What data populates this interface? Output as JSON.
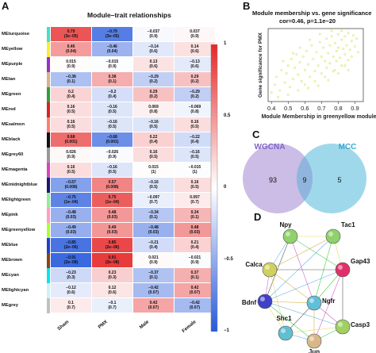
{
  "panels": {
    "a": {
      "letter": "A",
      "title": "Module–trait relationships"
    },
    "b": {
      "letter": "B",
      "title": "Module membership vs. gene significance",
      "subtitle": "cor=0.46, p=1.1e−20"
    },
    "c": {
      "letter": "C"
    },
    "d": {
      "letter": "D"
    }
  },
  "chart_data": [
    {
      "type": "heatmap",
      "title": "Module–trait relationships",
      "columns": [
        "Sham",
        "PMX",
        "Male",
        "Female"
      ],
      "colorbar": {
        "range": [
          -1,
          1
        ],
        "ticks": [
          "1",
          "0.5",
          "0",
          "−0.5",
          "−1"
        ]
      },
      "rows": [
        {
          "name": "MEturquoise",
          "color": "#40e0d0",
          "cells": [
            [
              "0.79",
              "(3e−05)"
            ],
            [
              "−0.79",
              "(3e−05)"
            ],
            [
              "−0.037",
              "(0.9)"
            ],
            [
              "0.037",
              "(0.9)"
            ]
          ],
          "values": [
            0.79,
            -0.79,
            -0.037,
            0.037
          ]
        },
        {
          "name": "MEyellow",
          "color": "#f5f02a",
          "cells": [
            [
              "0.46",
              "(0.04)"
            ],
            [
              "−0.46",
              "(0.04)"
            ],
            [
              "−0.14",
              "(0.6)"
            ],
            [
              "0.14",
              "(0.6)"
            ]
          ],
          "values": [
            0.46,
            -0.46,
            -0.14,
            0.14
          ]
        },
        {
          "name": "MEpurple",
          "color": "#9b30c8",
          "cells": [
            [
              "0.015",
              "(0.9)"
            ],
            [
              "−0.015",
              "(0.9)"
            ],
            [
              "0.13",
              "(0.6)"
            ],
            [
              "−0.13",
              "(0.6)"
            ]
          ],
          "values": [
            0.015,
            -0.015,
            0.13,
            -0.13
          ]
        },
        {
          "name": "MEtan",
          "color": "#d2b48c",
          "cells": [
            [
              "−0.38",
              "(0.1)"
            ],
            [
              "0.38",
              "(0.1)"
            ],
            [
              "−0.29",
              "(0.2)"
            ],
            [
              "0.29",
              "(0.2)"
            ]
          ],
          "values": [
            -0.38,
            0.38,
            -0.29,
            0.29
          ]
        },
        {
          "name": "MEgreen",
          "color": "#2e9e3a",
          "cells": [
            [
              "0.2",
              "(0.4)"
            ],
            [
              "−0.2",
              "(0.4)"
            ],
            [
              "0.29",
              "(0.2)"
            ],
            [
              "−0.29",
              "(0.2)"
            ]
          ],
          "values": [
            0.2,
            -0.2,
            0.29,
            -0.29
          ]
        },
        {
          "name": "MEred",
          "color": "#e02020",
          "cells": [
            [
              "0.16",
              "(0.5)"
            ],
            [
              "−0.16",
              "(0.5)"
            ],
            [
              "0.069",
              "(0.8)"
            ],
            [
              "−0.069",
              "(0.8)"
            ]
          ],
          "values": [
            0.16,
            -0.16,
            0.069,
            -0.069
          ]
        },
        {
          "name": "MEsalmon",
          "color": "#fa8072",
          "cells": [
            [
              "0.16",
              "(0.5)"
            ],
            [
              "−0.16",
              "(0.5)"
            ],
            [
              "−0.16",
              "(0.5)"
            ],
            [
              "0.16",
              "(0.5)"
            ]
          ],
          "values": [
            0.16,
            -0.16,
            -0.16,
            0.16
          ]
        },
        {
          "name": "MEblack",
          "color": "#111111",
          "cells": [
            [
              "0.68",
              "(0.001)"
            ],
            [
              "−0.68",
              "(0.001)"
            ],
            [
              "0.22",
              "(0.4)"
            ],
            [
              "−0.22",
              "(0.4)"
            ]
          ],
          "values": [
            0.68,
            -0.68,
            0.22,
            -0.22
          ]
        },
        {
          "name": "MEgrey60",
          "color": "#999999",
          "cells": [
            [
              "0.026",
              "(0.9)"
            ],
            [
              "−0.026",
              "(0.9)"
            ],
            [
              "0.16",
              "(0.5)"
            ],
            [
              "−0.16",
              "(0.5)"
            ]
          ],
          "values": [
            0.026,
            -0.026,
            0.16,
            -0.16
          ]
        },
        {
          "name": "MEmagenta",
          "color": "#e040c0",
          "cells": [
            [
              "0.16",
              "(0.5)"
            ],
            [
              "−0.16",
              "(0.5)"
            ],
            [
              "0.015",
              "(1)"
            ],
            [
              "−0.015",
              "(1)"
            ]
          ],
          "values": [
            0.16,
            -0.16,
            0.015,
            -0.015
          ]
        },
        {
          "name": "MEmidnightblue",
          "color": "#191970",
          "cells": [
            [
              "−0.57",
              "(0.008)"
            ],
            [
              "0.57",
              "(0.008)"
            ],
            [
              "−0.16",
              "(0.5)"
            ],
            [
              "0.16",
              "(0.5)"
            ]
          ],
          "values": [
            -0.57,
            0.57,
            -0.16,
            0.16
          ]
        },
        {
          "name": "MElightgreen",
          "color": "#90ee90",
          "cells": [
            [
              "−0.75",
              "(1e−04)"
            ],
            [
              "0.75",
              "(1e−04)"
            ],
            [
              "−0.097",
              "(0.7)"
            ],
            [
              "0.097",
              "(0.7)"
            ]
          ],
          "values": [
            -0.75,
            0.75,
            -0.097,
            0.097
          ]
        },
        {
          "name": "MEpink",
          "color": "#ff9fc0",
          "cells": [
            [
              "−0.48",
              "(0.03)"
            ],
            [
              "0.48",
              "(0.03)"
            ],
            [
              "−0.34",
              "(0.1)"
            ],
            [
              "0.34",
              "(0.1)"
            ]
          ],
          "values": [
            -0.48,
            0.48,
            -0.34,
            0.34
          ]
        },
        {
          "name": "MEgreenyellow",
          "color": "#adff2f",
          "cells": [
            [
              "−0.49",
              "(0.03)"
            ],
            [
              "0.49",
              "(0.03)"
            ],
            [
              "−0.48",
              "(0.03)"
            ],
            [
              "0.48",
              "(0.03)"
            ]
          ],
          "values": [
            -0.49,
            0.49,
            -0.48,
            0.48
          ]
        },
        {
          "name": "MEblue",
          "color": "#1f3fd0",
          "cells": [
            [
              "−0.85",
              "(2e−06)"
            ],
            [
              "0.85",
              "(2e−06)"
            ],
            [
              "−0.21",
              "(0.4)"
            ],
            [
              "0.21",
              "(0.4)"
            ]
          ],
          "values": [
            -0.85,
            0.85,
            -0.21,
            0.21
          ]
        },
        {
          "name": "MEbrown",
          "color": "#8b4513",
          "cells": [
            [
              "−0.91",
              "(2e−08)"
            ],
            [
              "0.91",
              "(2e−08)"
            ],
            [
              "0.021",
              "(0.9)"
            ],
            [
              "−0.021",
              "(0.9)"
            ]
          ],
          "values": [
            -0.91,
            0.91,
            0.021,
            -0.021
          ]
        },
        {
          "name": "MEcyan",
          "color": "#00e5ee",
          "cells": [
            [
              "−0.23",
              "(0.3)"
            ],
            [
              "0.23",
              "(0.3)"
            ],
            [
              "−0.37",
              "(0.1)"
            ],
            [
              "0.37",
              "(0.1)"
            ]
          ],
          "values": [
            -0.23,
            0.23,
            -0.37,
            0.37
          ]
        },
        {
          "name": "MElightcyan",
          "color": "#c8f4f8",
          "cells": [
            [
              "−0.12",
              "(0.6)"
            ],
            [
              "0.12",
              "(0.6)"
            ],
            [
              "−0.42",
              "(0.07)"
            ],
            [
              "0.42",
              "(0.07)"
            ]
          ],
          "values": [
            -0.12,
            0.12,
            -0.42,
            0.42
          ]
        },
        {
          "name": "MEgrey",
          "color": "#c0c0c0",
          "cells": [
            [
              "0.1",
              "(0.7)"
            ],
            [
              "−0.1",
              "(0.7)"
            ],
            [
              "0.42",
              "(0.07)"
            ],
            [
              "−0.42",
              "(0.07)"
            ]
          ],
          "values": [
            0.1,
            -0.1,
            0.42,
            -0.42
          ]
        }
      ]
    },
    {
      "type": "scatter",
      "title": "Module membership vs. gene significance",
      "subtitle": "cor=0.46, p=1.1e−20",
      "xlabel": "Module Membership in greenyellow module",
      "ylabel": "Gene significance for PMX",
      "xlim": [
        0.38,
        0.95
      ],
      "ylim": [
        0.3,
        0.95
      ],
      "xticks": [
        "0.4",
        "0.5",
        "0.6",
        "0.7",
        "0.8",
        "0.9"
      ],
      "point_color": "#d4e86a",
      "points": [
        [
          0.4,
          0.38
        ],
        [
          0.42,
          0.45
        ],
        [
          0.43,
          0.52
        ],
        [
          0.45,
          0.4
        ],
        [
          0.46,
          0.58
        ],
        [
          0.48,
          0.47
        ],
        [
          0.49,
          0.55
        ],
        [
          0.5,
          0.62
        ],
        [
          0.51,
          0.43
        ],
        [
          0.52,
          0.68
        ],
        [
          0.53,
          0.5
        ],
        [
          0.54,
          0.6
        ],
        [
          0.55,
          0.72
        ],
        [
          0.56,
          0.54
        ],
        [
          0.57,
          0.65
        ],
        [
          0.58,
          0.48
        ],
        [
          0.59,
          0.7
        ],
        [
          0.6,
          0.58
        ],
        [
          0.61,
          0.75
        ],
        [
          0.62,
          0.63
        ],
        [
          0.63,
          0.52
        ],
        [
          0.64,
          0.8
        ],
        [
          0.65,
          0.68
        ],
        [
          0.66,
          0.57
        ],
        [
          0.67,
          0.74
        ],
        [
          0.68,
          0.62
        ],
        [
          0.69,
          0.83
        ],
        [
          0.7,
          0.7
        ],
        [
          0.7,
          0.55
        ],
        [
          0.71,
          0.78
        ],
        [
          0.72,
          0.66
        ],
        [
          0.73,
          0.86
        ],
        [
          0.73,
          0.6
        ],
        [
          0.74,
          0.73
        ],
        [
          0.75,
          0.8
        ],
        [
          0.75,
          0.64
        ],
        [
          0.76,
          0.88
        ],
        [
          0.77,
          0.7
        ],
        [
          0.77,
          0.57
        ],
        [
          0.78,
          0.82
        ],
        [
          0.79,
          0.75
        ],
        [
          0.79,
          0.66
        ],
        [
          0.8,
          0.9
        ],
        [
          0.8,
          0.78
        ],
        [
          0.81,
          0.69
        ],
        [
          0.82,
          0.85
        ],
        [
          0.82,
          0.62
        ],
        [
          0.83,
          0.77
        ],
        [
          0.84,
          0.88
        ],
        [
          0.84,
          0.72
        ],
        [
          0.85,
          0.8
        ],
        [
          0.86,
          0.67
        ],
        [
          0.86,
          0.91
        ],
        [
          0.87,
          0.76
        ],
        [
          0.88,
          0.84
        ],
        [
          0.88,
          0.7
        ],
        [
          0.89,
          0.89
        ],
        [
          0.9,
          0.79
        ],
        [
          0.91,
          0.86
        ],
        [
          0.92,
          0.74
        ],
        [
          0.6,
          0.45
        ],
        [
          0.66,
          0.48
        ],
        [
          0.72,
          0.52
        ],
        [
          0.78,
          0.58
        ],
        [
          0.84,
          0.62
        ],
        [
          0.57,
          0.78
        ],
        [
          0.63,
          0.85
        ],
        [
          0.69,
          0.9
        ],
        [
          0.53,
          0.73
        ],
        [
          0.47,
          0.66
        ],
        [
          0.44,
          0.34
        ],
        [
          0.5,
          0.36
        ],
        [
          0.56,
          0.4
        ],
        [
          0.62,
          0.42
        ],
        [
          0.68,
          0.44
        ],
        [
          0.74,
          0.49
        ],
        [
          0.8,
          0.55
        ],
        [
          0.86,
          0.58
        ],
        [
          0.76,
          0.93
        ],
        [
          0.82,
          0.93
        ]
      ]
    },
    {
      "type": "venn",
      "sets": [
        {
          "name": "WGCNA",
          "only": 93,
          "color": "#b9a7dc"
        },
        {
          "name": "MCC",
          "only": 5,
          "color": "#7fcbe4"
        }
      ],
      "intersection": 9
    },
    {
      "type": "network",
      "nodes": [
        {
          "name": "Npy",
          "color": "#8fd16a"
        },
        {
          "name": "Tac1",
          "color": "#8fd16a"
        },
        {
          "name": "Calca",
          "color": "#d0d060"
        },
        {
          "name": "Gap43",
          "color": "#e0306a"
        },
        {
          "name": "Bdnf",
          "color": "#4040c8"
        },
        {
          "name": "Ngfr",
          "color": "#60c0d8"
        },
        {
          "name": "Shc1",
          "color": "#60c0d0"
        },
        {
          "name": "Casp3",
          "color": "#a0d060"
        },
        {
          "name": "Jun",
          "color": "#d8b888"
        }
      ],
      "edges": [
        [
          0,
          1
        ],
        [
          0,
          2
        ],
        [
          0,
          3
        ],
        [
          0,
          4
        ],
        [
          0,
          5
        ],
        [
          1,
          2
        ],
        [
          1,
          3
        ],
        [
          1,
          4
        ],
        [
          1,
          5
        ],
        [
          2,
          3
        ],
        [
          2,
          4
        ],
        [
          2,
          5
        ],
        [
          2,
          6
        ],
        [
          3,
          4
        ],
        [
          3,
          5
        ],
        [
          3,
          7
        ],
        [
          3,
          8
        ],
        [
          4,
          5
        ],
        [
          4,
          6
        ],
        [
          4,
          7
        ],
        [
          4,
          8
        ],
        [
          5,
          6
        ],
        [
          5,
          7
        ],
        [
          5,
          8
        ],
        [
          6,
          7
        ],
        [
          6,
          8
        ],
        [
          7,
          8
        ]
      ]
    }
  ]
}
